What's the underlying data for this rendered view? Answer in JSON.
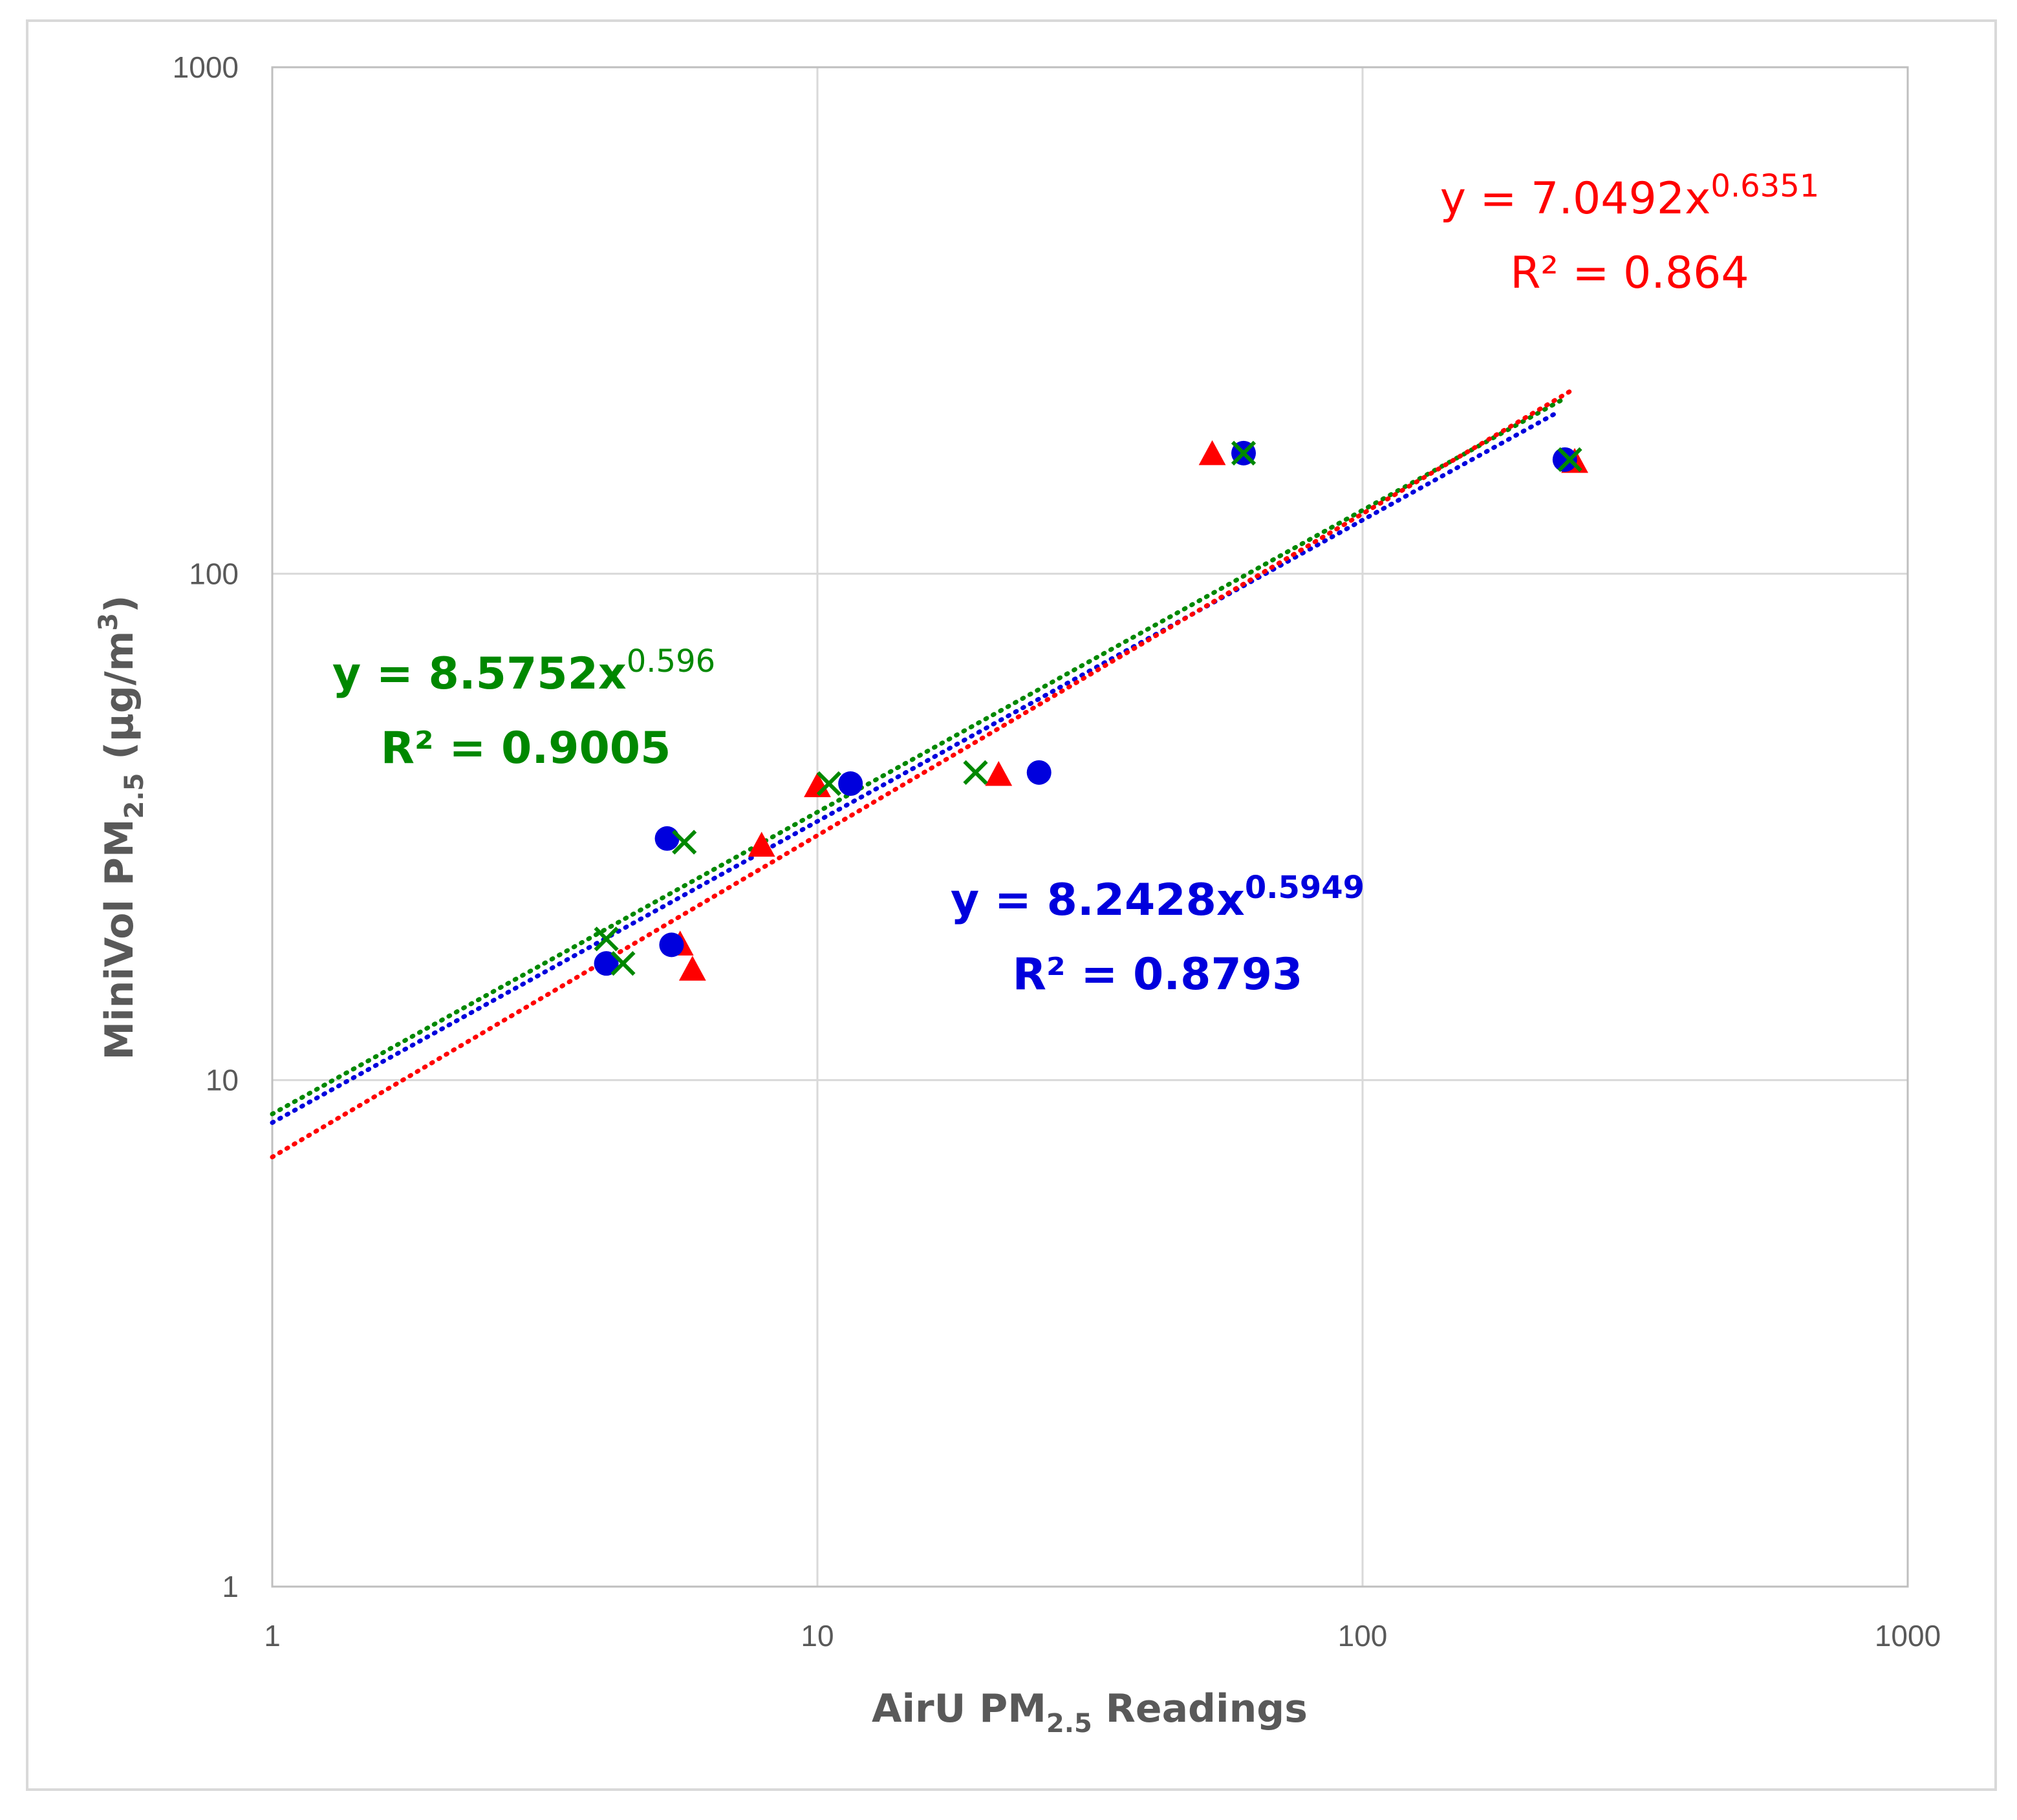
{
  "chart_data": {
    "type": "scatter",
    "x_scale": "log",
    "y_scale": "log",
    "xlim": [
      1,
      1000
    ],
    "ylim": [
      1,
      1000
    ],
    "grid": true,
    "x_ticks": [
      1,
      10,
      100,
      1000
    ],
    "y_ticks": [
      1,
      10,
      100,
      1000
    ],
    "x_tick_labels": [
      "1",
      "10",
      "100",
      "1000"
    ],
    "y_tick_labels": [
      "1",
      "10",
      "100",
      "1000"
    ],
    "xlabel": {
      "main": "AirU PM",
      "sub": "2.5",
      "tail": " Readings"
    },
    "ylabel": {
      "main": "MiniVol PM",
      "sub": "2.5",
      "tail": " (μg/m",
      "sup": "3",
      "end": ")"
    },
    "series": [
      {
        "name": "blue",
        "color": "#0000dd",
        "marker": "circle",
        "points": [
          [
            4.1,
            17.0
          ],
          [
            5.3,
            30.0
          ],
          [
            5.4,
            18.5
          ],
          [
            11.5,
            38.5
          ],
          [
            25.5,
            40.5
          ],
          [
            60.5,
            173.0
          ],
          [
            235.0,
            168.0
          ]
        ],
        "trendline": {
          "a": 8.2428,
          "b": 0.5949,
          "x_range": [
            1,
            230
          ]
        },
        "equation": {
          "prefix": "y = 8.2428x",
          "exponent": "0.5949",
          "r2": "R² = 0.8793"
        }
      },
      {
        "name": "green",
        "color": "#008800",
        "marker": "x",
        "points": [
          [
            4.1,
            19.0
          ],
          [
            4.4,
            17.0
          ],
          [
            5.7,
            29.5
          ],
          [
            10.5,
            38.5
          ],
          [
            19.5,
            40.5
          ],
          [
            60.5,
            173.0
          ],
          [
            240.0,
            168.0
          ]
        ],
        "trendline": {
          "a": 8.5752,
          "b": 0.596,
          "x_range": [
            1,
            235
          ]
        },
        "equation": {
          "prefix": "y = 8.5752x",
          "exponent": "0.596",
          "r2": "R² = 0.9005"
        }
      },
      {
        "name": "red",
        "color": "#ff0000",
        "marker": "triangle",
        "points": [
          [
            5.6,
            18.5
          ],
          [
            5.9,
            16.5
          ],
          [
            7.9,
            29.0
          ],
          [
            10.0,
            38.0
          ],
          [
            21.5,
            40.0
          ],
          [
            53.0,
            172.0
          ],
          [
            245.0,
            166.0
          ]
        ],
        "trendline": {
          "a": 7.0492,
          "b": 0.6351,
          "x_range": [
            1,
            245
          ]
        },
        "equation": {
          "prefix": "y = 7.0492x",
          "exponent": "0.6351",
          "r2": "R² = 0.864"
        }
      }
    ]
  }
}
